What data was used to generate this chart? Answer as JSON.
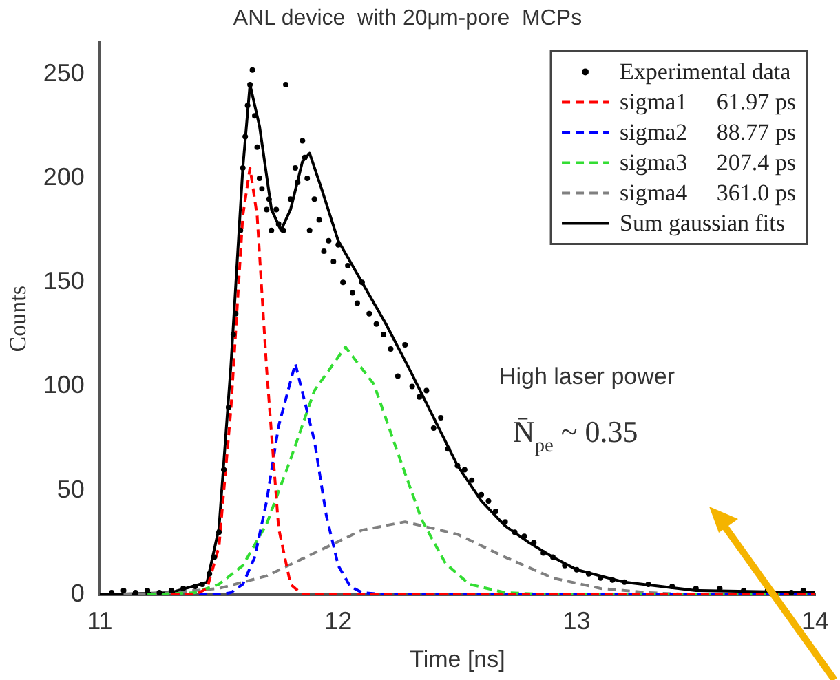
{
  "chart_data": {
    "type": "line",
    "title": "ANL device  with 20μm-pore  MCPs",
    "xlabel": "Time [ns]",
    "ylabel": "Counts",
    "xlim": [
      11,
      14
    ],
    "xticks": [
      11,
      12,
      13,
      14
    ],
    "ylim": [
      0,
      265
    ],
    "yticks": [
      0,
      50,
      100,
      150,
      200,
      250
    ],
    "grid": false,
    "legend": "top right",
    "annotations": [
      "High laser power",
      "N̄$_{pe}$ ~ 0.35"
    ],
    "series": [
      {
        "name": "Experimental data",
        "type": "scatter",
        "marker": "circle",
        "color": "#000000",
        "x": [
          11.05,
          11.1,
          11.15,
          11.2,
          11.25,
          11.3,
          11.35,
          11.4,
          11.43,
          11.46,
          11.48,
          11.5,
          11.52,
          11.54,
          11.56,
          11.57,
          11.59,
          11.6,
          11.61,
          11.62,
          11.63,
          11.64,
          11.65,
          11.66,
          11.67,
          11.68,
          11.7,
          11.71,
          11.72,
          11.74,
          11.75,
          11.77,
          11.78,
          11.8,
          11.82,
          11.83,
          11.85,
          11.86,
          11.87,
          11.88,
          11.9,
          11.92,
          11.94,
          11.96,
          11.98,
          12.0,
          12.02,
          12.04,
          12.06,
          12.08,
          12.1,
          12.13,
          12.16,
          12.19,
          12.22,
          12.25,
          12.28,
          12.31,
          12.34,
          12.37,
          12.4,
          12.43,
          12.46,
          12.5,
          12.53,
          12.56,
          12.6,
          12.63,
          12.66,
          12.7,
          12.74,
          12.78,
          12.82,
          12.86,
          12.9,
          12.95,
          13.0,
          13.05,
          13.1,
          13.15,
          13.2,
          13.3,
          13.4,
          13.5,
          13.6,
          13.7,
          13.8,
          13.9,
          13.95
        ],
        "values": [
          1,
          2,
          1,
          2,
          1,
          2,
          3,
          4,
          5,
          10,
          18,
          30,
          60,
          90,
          125,
          135,
          175,
          205,
          220,
          235,
          245,
          252,
          230,
          215,
          200,
          195,
          185,
          190,
          175,
          185,
          178,
          175,
          245,
          190,
          205,
          198,
          218,
          210,
          200,
          175,
          190,
          180,
          165,
          170,
          160,
          168,
          150,
          158,
          145,
          140,
          150,
          135,
          130,
          125,
          118,
          105,
          120,
          100,
          95,
          98,
          80,
          85,
          70,
          62,
          60,
          55,
          48,
          45,
          40,
          35,
          30,
          28,
          25,
          20,
          18,
          14,
          12,
          10,
          8,
          7,
          6,
          5,
          4,
          3,
          3,
          2,
          2,
          1,
          2
        ]
      },
      {
        "name": "sigma1     61.97 ps",
        "line_style": "dashed",
        "marker": "none",
        "color": "#ff0000",
        "x": [
          11.3,
          11.4,
          11.45,
          11.5,
          11.55,
          11.6,
          11.63,
          11.66,
          11.7,
          11.75,
          11.8,
          11.85,
          11.9,
          12.0,
          12.5,
          14
        ],
        "values": [
          0,
          0,
          3,
          23,
          89,
          182,
          205,
          182,
          108,
          32,
          5,
          0,
          0,
          0,
          0,
          0
        ]
      },
      {
        "name": "sigma2     88.77 ps",
        "line_style": "dashed",
        "marker": "none",
        "color": "#0000ff",
        "x": [
          11.3,
          11.5,
          11.55,
          11.6,
          11.65,
          11.7,
          11.75,
          11.82,
          11.9,
          11.95,
          12.0,
          12.05,
          12.1,
          12.2,
          12.5,
          14
        ],
        "values": [
          0,
          0,
          1,
          5,
          18,
          45,
          81,
          111,
          74,
          38,
          14,
          4,
          1,
          0,
          0,
          0
        ]
      },
      {
        "name": "sigma3     207.4 ps",
        "line_style": "dashed",
        "marker": "none",
        "color": "#33dd33",
        "x": [
          11.2,
          11.4,
          11.5,
          11.6,
          11.7,
          11.8,
          11.9,
          12.03,
          12.15,
          12.25,
          12.35,
          12.45,
          12.55,
          12.7,
          12.9,
          14
        ],
        "values": [
          0,
          1,
          5,
          14,
          34,
          65,
          98,
          119,
          101,
          68,
          36,
          15,
          5,
          1,
          0,
          0
        ]
      },
      {
        "name": "sigma4     361.0 ps",
        "line_style": "dashed",
        "marker": "none",
        "color": "#808080",
        "x": [
          11.1,
          11.3,
          11.5,
          11.7,
          11.9,
          12.1,
          12.28,
          12.5,
          12.7,
          12.9,
          13.1,
          13.3,
          13.5,
          14
        ],
        "values": [
          0,
          1,
          3,
          9,
          20,
          31,
          35,
          29,
          18,
          8,
          3,
          1,
          0,
          0
        ]
      },
      {
        "name": "Sum gaussian fits",
        "line_style": "solid",
        "marker": "none",
        "color": "#000000",
        "x": [
          11.0,
          11.3,
          11.45,
          11.5,
          11.55,
          11.6,
          11.63,
          11.67,
          11.72,
          11.76,
          11.8,
          11.85,
          11.88,
          11.93,
          12.0,
          12.1,
          12.2,
          12.3,
          12.4,
          12.5,
          12.6,
          12.7,
          12.8,
          12.9,
          13.0,
          13.2,
          13.5,
          14.0
        ],
        "values": [
          0,
          1,
          6,
          32,
          110,
          205,
          245,
          225,
          185,
          175,
          185,
          208,
          212,
          195,
          170,
          150,
          130,
          108,
          85,
          62,
          45,
          33,
          25,
          18,
          12,
          6,
          2,
          1
        ]
      }
    ]
  }
}
